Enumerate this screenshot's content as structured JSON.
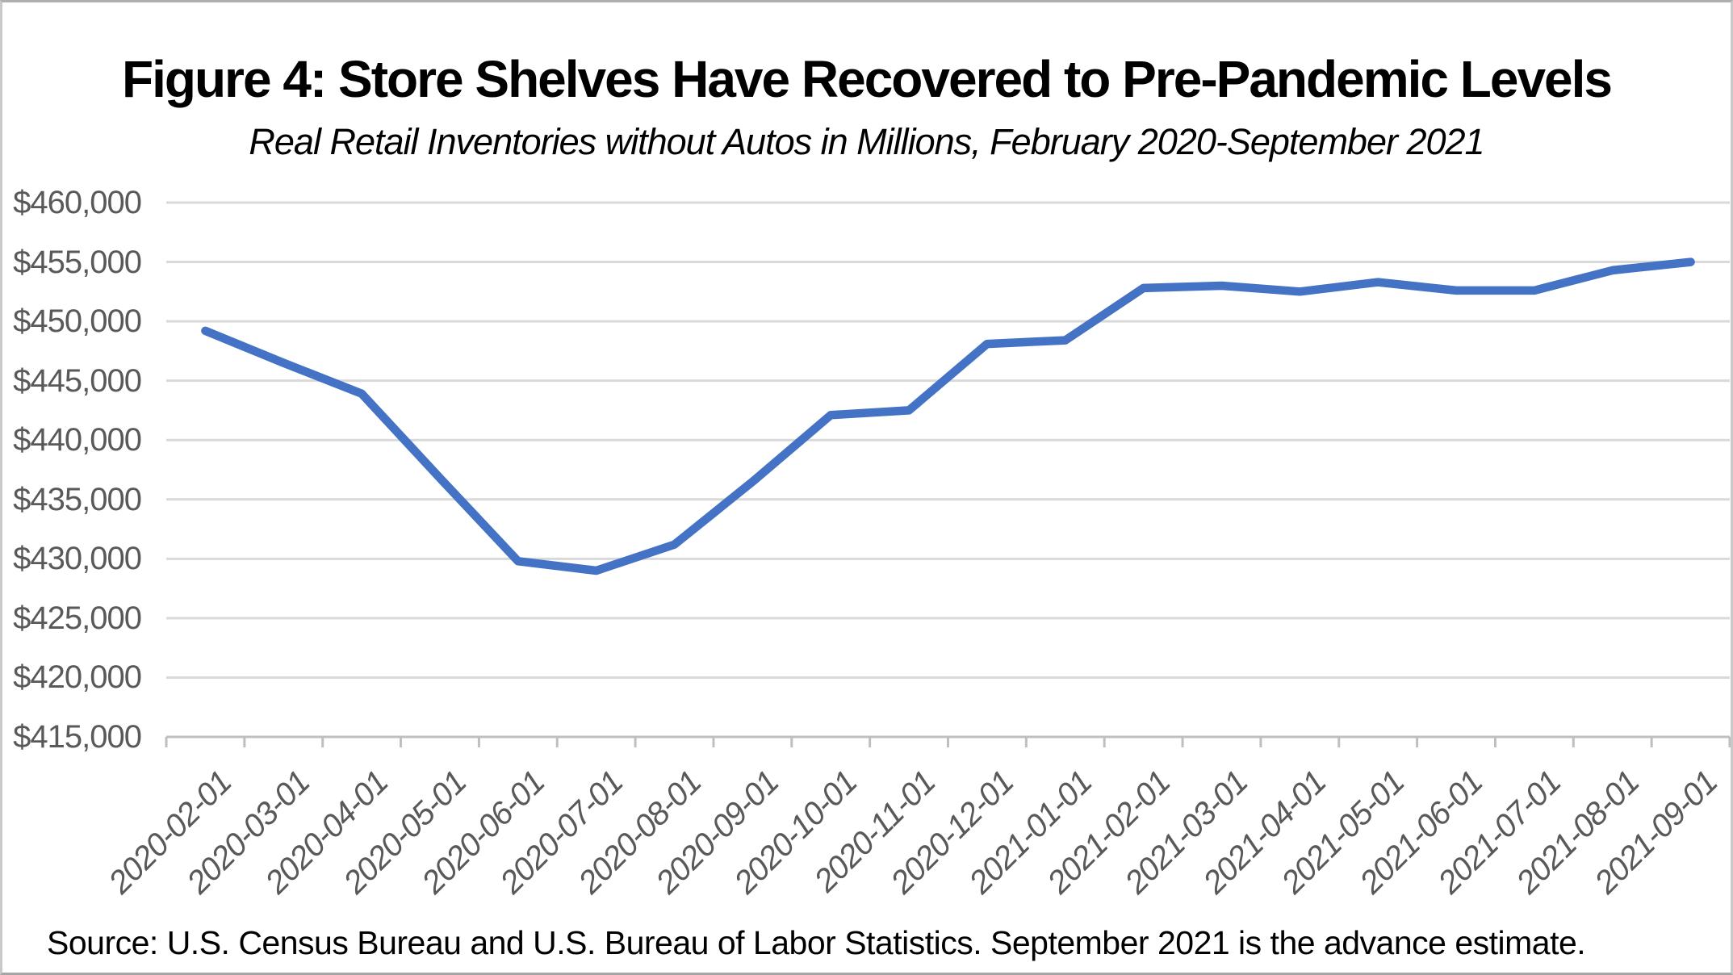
{
  "figure": {
    "title": "Figure 4: Store Shelves Have Recovered to Pre-Pandemic Levels",
    "subtitle": "Real Retail Inventories without Autos in Millions, February 2020-September 2021",
    "source_note": "Source: U.S. Census Bureau and U.S. Bureau of Labor Statistics. September 2021 is the advance estimate."
  },
  "chart_data": {
    "type": "line",
    "title": "Figure 4: Store Shelves Have Recovered to Pre-Pandemic Levels",
    "subtitle": "Real Retail Inventories without Autos in Millions, February 2020-September 2021",
    "categories": [
      "2020-02-01",
      "2020-03-01",
      "2020-04-01",
      "2020-05-01",
      "2020-06-01",
      "2020-07-01",
      "2020-08-01",
      "2020-09-01",
      "2020-10-01",
      "2020-11-01",
      "2020-12-01",
      "2021-01-01",
      "2021-02-01",
      "2021-03-01",
      "2021-04-01",
      "2021-05-01",
      "2021-06-01",
      "2021-07-01",
      "2021-08-01",
      "2021-09-01"
    ],
    "series": [
      {
        "name": "Real Retail Inventories without Autos",
        "color": "#4472C4",
        "values": [
          449200,
          446500,
          443900,
          436800,
          429800,
          429000,
          431200,
          436500,
          442100,
          442500,
          448100,
          448400,
          452800,
          453000,
          452500,
          453300,
          452600,
          452600,
          454300,
          455000
        ]
      }
    ],
    "ylim": [
      415000,
      460000
    ],
    "ytick_step": 5000,
    "ytick_labels": [
      "$460,000",
      "$455,000",
      "$450,000",
      "$445,000",
      "$440,000",
      "$435,000",
      "$430,000",
      "$425,000",
      "$420,000",
      "$415,000"
    ],
    "ytick_values": [
      460000,
      455000,
      450000,
      445000,
      440000,
      435000,
      430000,
      425000,
      420000,
      415000
    ],
    "xtick_rotation": -45,
    "grid": "horizontal",
    "legend": "none",
    "colors": {
      "line": "#4472C4",
      "gridline": "#D9D9D9",
      "axis_line": "#BFBFBF",
      "tick_label": "#595959",
      "text": "#000000"
    }
  }
}
